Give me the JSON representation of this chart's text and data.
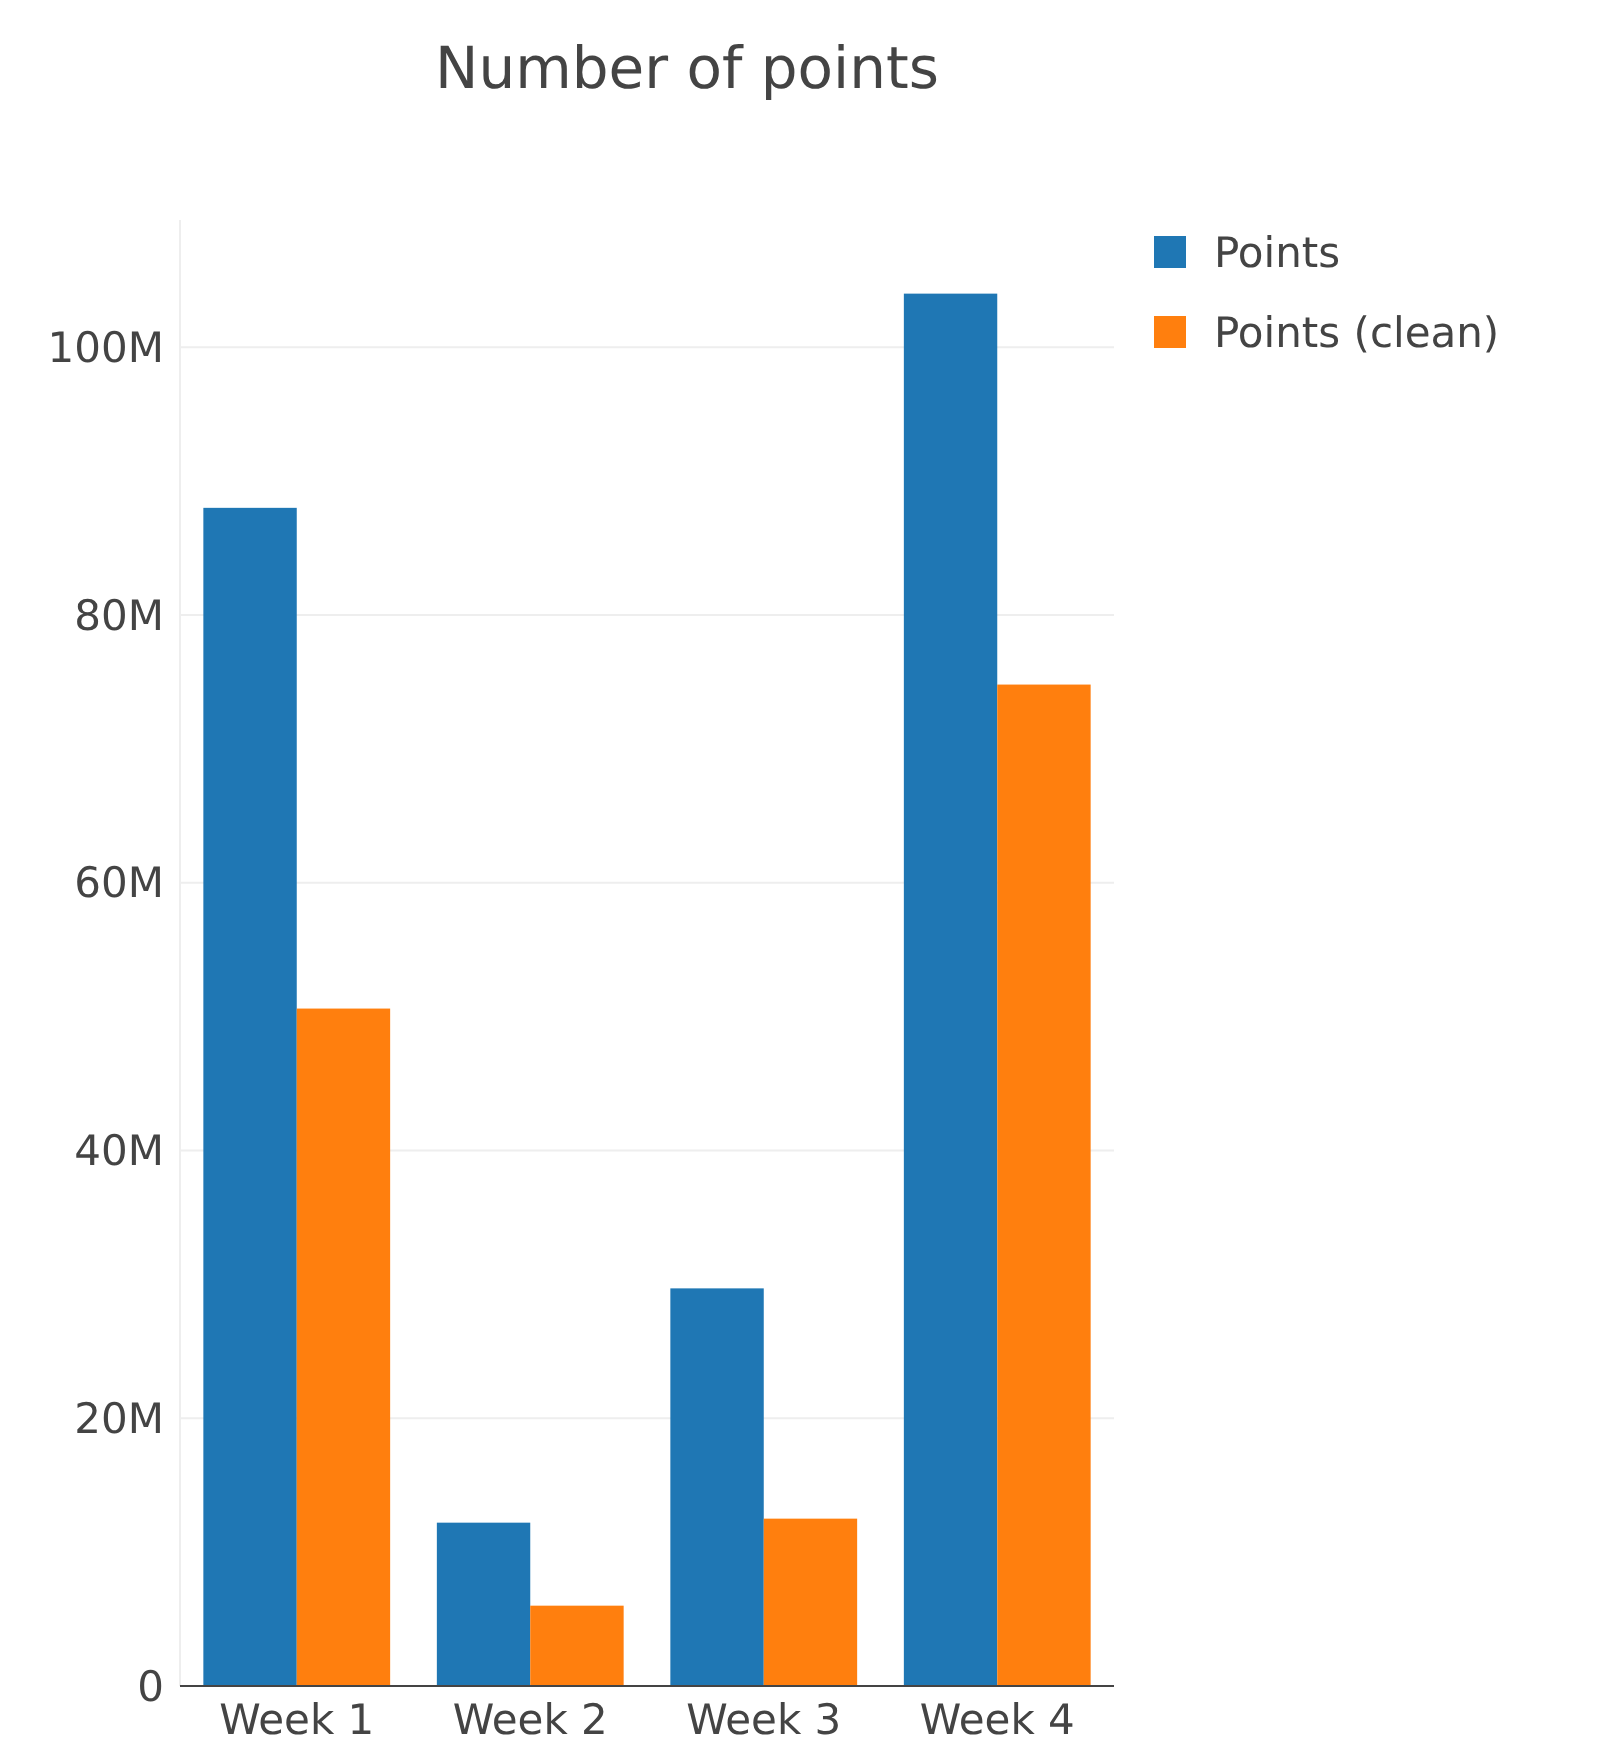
{
  "chart_data": {
    "type": "bar",
    "title": "Number of points",
    "categories": [
      "Week 1",
      "Week 2",
      "Week 3",
      "Week 4"
    ],
    "series": [
      {
        "name": "Points",
        "color": "#1f77b4",
        "values": [
          88,
          12.2,
          29.7,
          104
        ]
      },
      {
        "name": "Points (clean)",
        "color": "#ff7f0e",
        "values": [
          50.6,
          6,
          12.5,
          74.8
        ]
      }
    ],
    "ylim": [
      0,
      109.5
    ],
    "yticks": [
      0,
      {
        "value": 20,
        "label": "20M"
      },
      {
        "value": 40,
        "label": "40M"
      },
      {
        "value": 60,
        "label": "60M"
      },
      {
        "value": 80,
        "label": "80M"
      },
      {
        "value": 100,
        "label": "100M"
      }
    ],
    "grid": "y",
    "legend": "top right"
  }
}
